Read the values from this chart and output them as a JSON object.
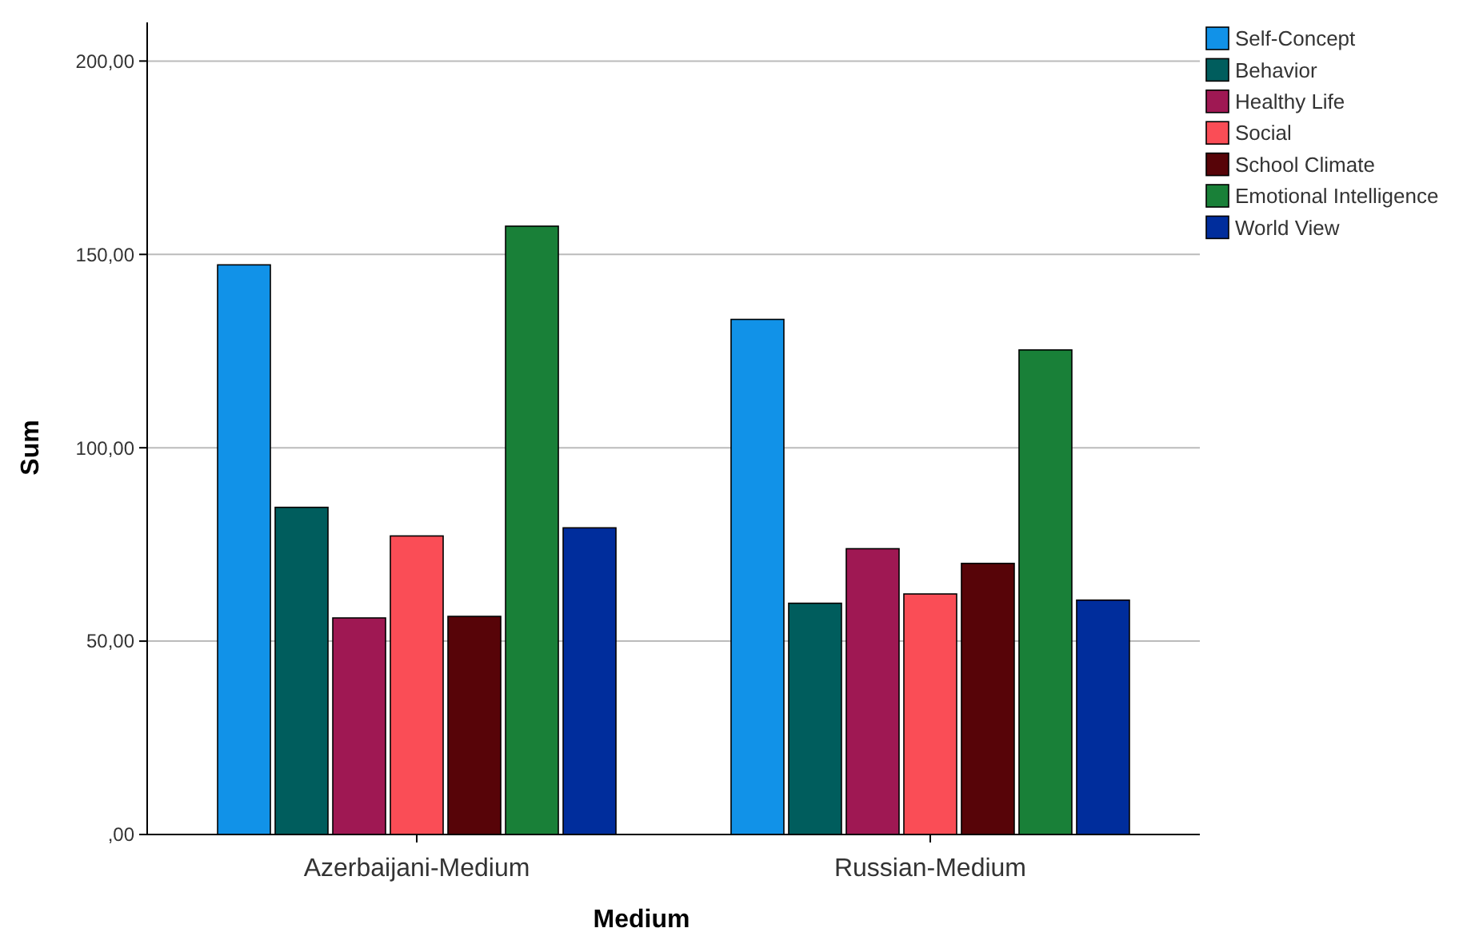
{
  "chart_data": {
    "type": "bar",
    "xlabel": "Medium",
    "ylabel": "Sum",
    "categories": [
      "Azerbaijani-Medium",
      "Russian-Medium"
    ],
    "series": [
      {
        "name": "Self-Concept",
        "color": "#1192e8",
        "values": [
          147.3,
          133.2
        ]
      },
      {
        "name": "Behavior",
        "color": "#005d5d",
        "values": [
          84.6,
          59.8
        ]
      },
      {
        "name": "Healthy Life",
        "color": "#9f1853",
        "values": [
          56.0,
          73.9
        ]
      },
      {
        "name": "Social",
        "color": "#fa4d56",
        "values": [
          77.2,
          62.2
        ]
      },
      {
        "name": "School Climate",
        "color": "#570408",
        "values": [
          56.4,
          70.1
        ]
      },
      {
        "name": "Emotional Intelligence",
        "color": "#198038",
        "values": [
          157.3,
          125.3
        ]
      },
      {
        "name": "World View",
        "color": "#002d9c",
        "values": [
          79.3,
          60.6
        ]
      }
    ],
    "ylim": [
      0,
      210
    ],
    "yticks": [
      {
        "value": 0,
        "label": ",00"
      },
      {
        "value": 50,
        "label": "50,00"
      },
      {
        "value": 100,
        "label": "100,00"
      },
      {
        "value": 150,
        "label": "150,00"
      },
      {
        "value": 200,
        "label": "200,00"
      }
    ],
    "grid": "y",
    "legend": "top right"
  }
}
